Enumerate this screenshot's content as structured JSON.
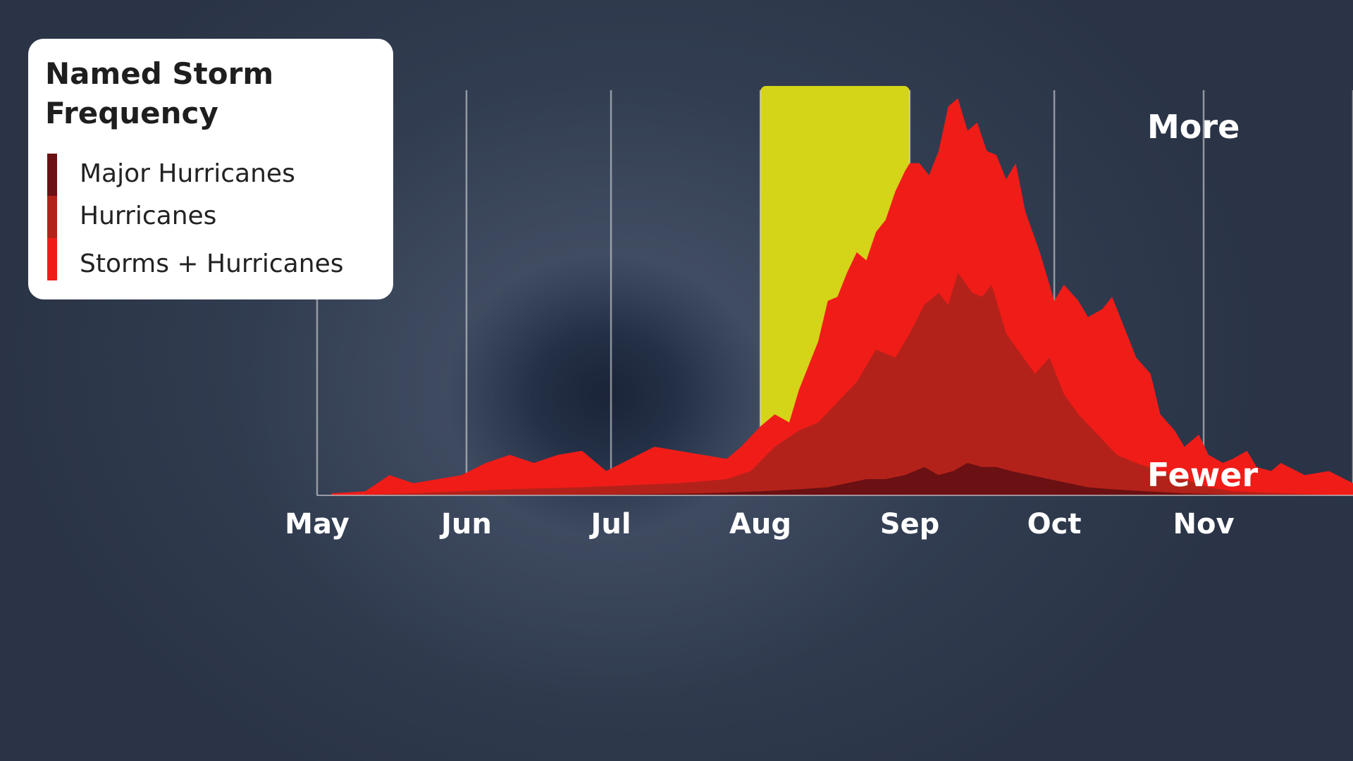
{
  "legend": {
    "title_line1": "Named Storm",
    "title_line2": "Frequency",
    "items": [
      {
        "label": "Major Hurricanes",
        "color": "#6b1013"
      },
      {
        "label": "Hurricanes",
        "color": "#b3221a"
      },
      {
        "label": "Storms + Hurricanes",
        "color": "#f01c18"
      }
    ]
  },
  "scale_labels": {
    "more": "More",
    "fewer": "Fewer"
  },
  "chart_data": {
    "type": "area",
    "title": "Named Storm Frequency",
    "x_unit": "days since May 1",
    "xlim": [
      0,
      215
    ],
    "ylim": [
      0,
      100
    ],
    "ticks": [
      {
        "label": "May",
        "day": 0
      },
      {
        "label": "Jun",
        "day": 31
      },
      {
        "label": "Jul",
        "day": 61
      },
      {
        "label": "Aug",
        "day": 92
      },
      {
        "label": "Sep",
        "day": 123
      },
      {
        "label": "Oct",
        "day": 153
      },
      {
        "label": "Nov",
        "day": 184
      }
    ],
    "highlight": {
      "from_day": 92,
      "to_day": 123,
      "color": "#d4d418"
    },
    "grid": "vertical",
    "legend_position": "top-left",
    "series": [
      {
        "name": "Storms + Hurricanes",
        "color": "#f01c18",
        "x": [
          3,
          10,
          15,
          20,
          25,
          30,
          35,
          40,
          45,
          50,
          55,
          60,
          65,
          70,
          75,
          80,
          85,
          88,
          92,
          95,
          98,
          100,
          102,
          104,
          106,
          108,
          110,
          112,
          114,
          116,
          118,
          120,
          122,
          123,
          125,
          127,
          129,
          131,
          133,
          135,
          137,
          139,
          141,
          143,
          145,
          147,
          150,
          153,
          155,
          158,
          160,
          163,
          165,
          168,
          170,
          173,
          175,
          178,
          180,
          183,
          185,
          188,
          190,
          193,
          195,
          198,
          200,
          205,
          210,
          215
        ],
        "y": [
          0.5,
          1,
          5,
          3,
          4,
          5,
          8,
          10,
          8,
          10,
          11,
          6,
          9,
          12,
          11,
          10,
          9,
          12,
          17,
          20,
          18,
          26,
          32,
          38,
          48,
          49,
          55,
          60,
          58,
          65,
          68,
          75,
          80,
          82,
          82,
          79,
          85,
          96,
          98,
          90,
          92,
          85,
          84,
          78,
          82,
          70,
          60,
          48,
          52,
          48,
          44,
          46,
          49,
          40,
          34,
          30,
          20,
          16,
          12,
          15,
          10,
          8,
          9,
          11,
          7,
          6,
          8,
          5,
          6,
          3
        ]
      },
      {
        "name": "Hurricanes",
        "color": "#b3221a",
        "x": [
          3,
          20,
          40,
          55,
          65,
          75,
          85,
          90,
          95,
          100,
          104,
          108,
          112,
          116,
          120,
          123,
          126,
          129,
          131,
          133,
          136,
          138,
          140,
          143,
          146,
          149,
          152,
          155,
          158,
          162,
          166,
          170,
          175,
          180,
          185,
          190,
          200,
          215
        ],
        "y": [
          0,
          0.5,
          1.5,
          2,
          2.5,
          3,
          4,
          6,
          12,
          16,
          18,
          23,
          28,
          36,
          34,
          40,
          47,
          50,
          47,
          55,
          50,
          49,
          52,
          40,
          35,
          30,
          34,
          25,
          20,
          15,
          10,
          8,
          6,
          4,
          2,
          1,
          0.5,
          0
        ]
      },
      {
        "name": "Major Hurricanes",
        "color": "#6b1013",
        "x": [
          3,
          60,
          80,
          92,
          100,
          106,
          110,
          114,
          118,
          122,
          126,
          129,
          132,
          135,
          138,
          141,
          144,
          148,
          152,
          156,
          160,
          165,
          172,
          180,
          190,
          215
        ],
        "y": [
          0,
          0.2,
          0.5,
          1,
          1.5,
          2,
          3,
          4,
          4,
          5,
          7,
          5,
          6,
          8,
          7,
          7,
          6,
          5,
          4,
          3,
          2,
          1.5,
          1,
          0.5,
          0.2,
          0
        ]
      }
    ]
  }
}
